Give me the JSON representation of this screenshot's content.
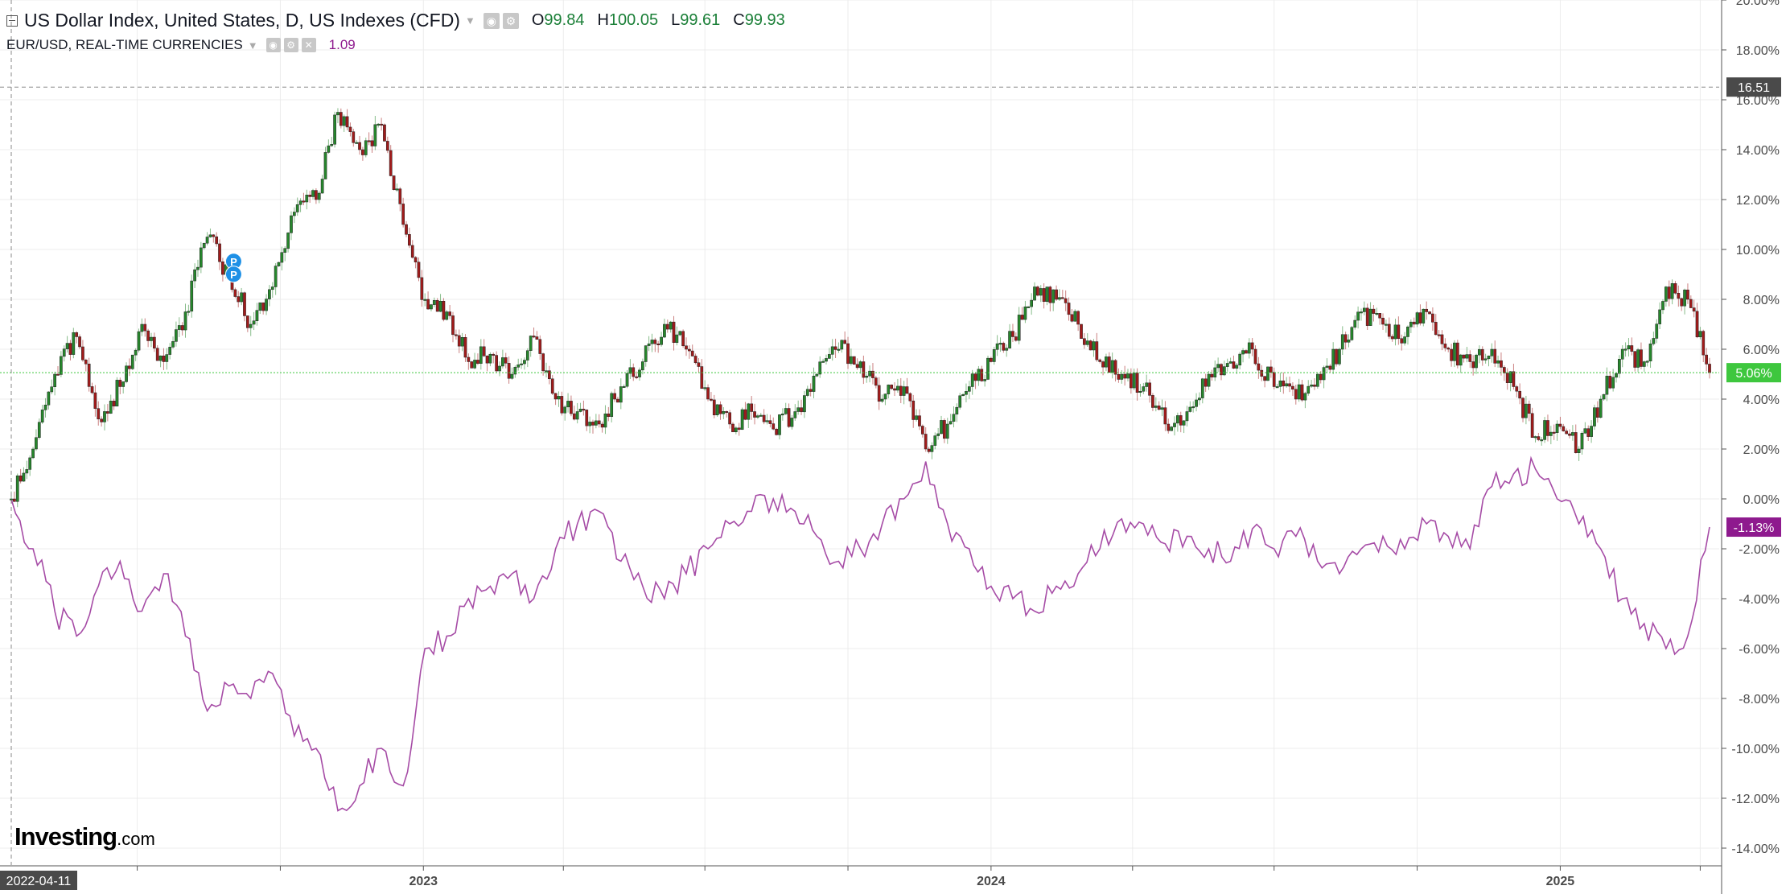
{
  "legend": {
    "main_title": "US Dollar Index, United States, D, US Indexes (CFD)",
    "ohlc": [
      {
        "label": "O",
        "value": "99.84"
      },
      {
        "label": "H",
        "value": "100.05"
      },
      {
        "label": "L",
        "value": "99.61"
      },
      {
        "label": "C",
        "value": "99.93"
      }
    ],
    "compare_title": "EUR/USD, REAL-TIME CURRENCIES",
    "compare_value": "1.09"
  },
  "badges": {
    "crosshair_price": "16.51",
    "crosshair_date": "2022-04-11",
    "dxy_last": "5.06%",
    "eurusd_last": "-1.13%"
  },
  "marker": {
    "label": "P"
  },
  "watermark": {
    "brand": "Investing",
    "suffix": ".com"
  },
  "colors": {
    "up": "#26872c",
    "down": "#a11b1b",
    "compare": "#a64ca6",
    "last_line": "#3ec73e",
    "compare_badge": "#8e1a8e"
  },
  "chart_data": {
    "type": "candlestick",
    "title": "US Dollar Index, United States, D, US Indexes (CFD)",
    "ylim": [
      -14.5,
      20
    ],
    "yticks": [
      20,
      18,
      16,
      14,
      12,
      10,
      8,
      6,
      4,
      2,
      0,
      -2,
      -4,
      -6,
      -8,
      -10,
      -12,
      -14
    ],
    "ytick_labels": [
      "20.00%",
      "18.00%",
      "16.00%",
      "14.00%",
      "12.00%",
      "10.00%",
      "8.00%",
      "6.00%",
      "4.00%",
      "2.00%",
      "0.00%",
      "-2.00%",
      "-4.00%",
      "-6.00%",
      "-8.00%",
      "-10.00%",
      "-12.00%",
      "-14.00%"
    ],
    "x_start": "2022-04-11",
    "x_end": "2025-04-07",
    "xtick_labels": [
      {
        "date": "2023-01-01",
        "label": "2023"
      },
      {
        "date": "2024-01-01",
        "label": "2024"
      },
      {
        "date": "2025-01-01",
        "label": "2025"
      }
    ],
    "crosshair": {
      "date": "2022-04-11",
      "value": 16.51
    },
    "series": [
      {
        "name": "US Dollar Index",
        "style": "candles",
        "points": [
          [
            "2022-04-11",
            0.0
          ],
          [
            "2022-04-25",
            2.0
          ],
          [
            "2022-05-09",
            5.0
          ],
          [
            "2022-05-23",
            6.5
          ],
          [
            "2022-06-06",
            3.2
          ],
          [
            "2022-06-20",
            4.5
          ],
          [
            "2022-07-04",
            7.0
          ],
          [
            "2022-07-18",
            5.5
          ],
          [
            "2022-08-01",
            7.5
          ],
          [
            "2022-08-15",
            10.5
          ],
          [
            "2022-08-29",
            9.0
          ],
          [
            "2022-09-12",
            7.0
          ],
          [
            "2022-09-26",
            8.5
          ],
          [
            "2022-10-10",
            11.5
          ],
          [
            "2022-10-24",
            12.0
          ],
          [
            "2022-11-07",
            15.5
          ],
          [
            "2022-11-21",
            14.0
          ],
          [
            "2022-12-05",
            15.0
          ],
          [
            "2022-12-19",
            11.0
          ],
          [
            "2023-01-02",
            8.0
          ],
          [
            "2023-01-16",
            7.5
          ],
          [
            "2023-01-30",
            5.5
          ],
          [
            "2023-02-13",
            5.8
          ],
          [
            "2023-02-27",
            5.0
          ],
          [
            "2023-03-13",
            6.5
          ],
          [
            "2023-03-27",
            4.0
          ],
          [
            "2023-04-10",
            3.5
          ],
          [
            "2023-04-24",
            3.0
          ],
          [
            "2023-05-08",
            4.5
          ],
          [
            "2023-05-22",
            5.5
          ],
          [
            "2023-06-05",
            7.0
          ],
          [
            "2023-06-19",
            6.0
          ],
          [
            "2023-07-03",
            4.0
          ],
          [
            "2023-07-17",
            3.0
          ],
          [
            "2023-07-31",
            3.5
          ],
          [
            "2023-08-14",
            2.8
          ],
          [
            "2023-08-28",
            3.5
          ],
          [
            "2023-09-11",
            5.0
          ],
          [
            "2023-09-25",
            6.0
          ],
          [
            "2023-10-09",
            5.5
          ],
          [
            "2023-10-23",
            4.0
          ],
          [
            "2023-11-06",
            4.5
          ],
          [
            "2023-11-20",
            2.0
          ],
          [
            "2023-12-04",
            3.0
          ],
          [
            "2023-12-18",
            4.5
          ],
          [
            "2024-01-01",
            5.5
          ],
          [
            "2024-01-15",
            6.5
          ],
          [
            "2024-01-29",
            8.5
          ],
          [
            "2024-02-12",
            8.0
          ],
          [
            "2024-02-26",
            7.0
          ],
          [
            "2024-03-11",
            5.5
          ],
          [
            "2024-03-25",
            5.0
          ],
          [
            "2024-04-08",
            4.5
          ],
          [
            "2024-04-22",
            3.0
          ],
          [
            "2024-05-06",
            3.5
          ],
          [
            "2024-05-20",
            5.0
          ],
          [
            "2024-06-03",
            5.5
          ],
          [
            "2024-06-17",
            6.0
          ],
          [
            "2024-07-01",
            4.5
          ],
          [
            "2024-07-15",
            4.0
          ],
          [
            "2024-07-29",
            5.0
          ],
          [
            "2024-08-12",
            6.0
          ],
          [
            "2024-08-26",
            7.5
          ],
          [
            "2024-09-09",
            7.0
          ],
          [
            "2024-09-23",
            6.5
          ],
          [
            "2024-10-07",
            7.5
          ],
          [
            "2024-10-21",
            6.0
          ],
          [
            "2024-11-04",
            5.5
          ],
          [
            "2024-11-18",
            6.0
          ],
          [
            "2024-12-02",
            4.5
          ],
          [
            "2024-12-16",
            2.5
          ],
          [
            "2024-12-30",
            3.0
          ],
          [
            "2025-01-13",
            2.0
          ],
          [
            "2025-01-27",
            4.0
          ],
          [
            "2025-02-10",
            6.0
          ],
          [
            "2025-02-24",
            5.5
          ],
          [
            "2025-03-10",
            8.5
          ],
          [
            "2025-03-24",
            8.0
          ],
          [
            "2025-04-07",
            5.06
          ]
        ]
      },
      {
        "name": "EUR/USD",
        "style": "line",
        "points": [
          [
            "2022-04-11",
            0.0
          ],
          [
            "2022-04-25",
            -2.0
          ],
          [
            "2022-05-09",
            -4.5
          ],
          [
            "2022-05-23",
            -5.5
          ],
          [
            "2022-06-06",
            -3.5
          ],
          [
            "2022-06-20",
            -2.5
          ],
          [
            "2022-07-04",
            -4.5
          ],
          [
            "2022-07-18",
            -3.0
          ],
          [
            "2022-08-01",
            -5.5
          ],
          [
            "2022-08-15",
            -8.5
          ],
          [
            "2022-08-29",
            -7.5
          ],
          [
            "2022-09-12",
            -8.0
          ],
          [
            "2022-09-26",
            -7.0
          ],
          [
            "2022-10-10",
            -9.5
          ],
          [
            "2022-10-24",
            -10.0
          ],
          [
            "2022-11-07",
            -12.5
          ],
          [
            "2022-11-21",
            -11.5
          ],
          [
            "2022-12-05",
            -10.0
          ],
          [
            "2022-12-19",
            -11.5
          ],
          [
            "2023-01-02",
            -6.0
          ],
          [
            "2023-01-16",
            -5.5
          ],
          [
            "2023-01-30",
            -4.0
          ],
          [
            "2023-02-13",
            -3.5
          ],
          [
            "2023-02-27",
            -3.0
          ],
          [
            "2023-03-13",
            -4.0
          ],
          [
            "2023-03-27",
            -2.0
          ],
          [
            "2023-04-10",
            -1.0
          ],
          [
            "2023-04-24",
            -0.5
          ],
          [
            "2023-05-08",
            -2.5
          ],
          [
            "2023-05-22",
            -3.5
          ],
          [
            "2023-06-05",
            -4.0
          ],
          [
            "2023-06-19",
            -3.0
          ],
          [
            "2023-07-03",
            -2.0
          ],
          [
            "2023-07-17",
            -1.0
          ],
          [
            "2023-07-31",
            -0.5
          ],
          [
            "2023-08-14",
            0.0
          ],
          [
            "2023-08-28",
            -0.5
          ],
          [
            "2023-09-11",
            -1.5
          ],
          [
            "2023-09-25",
            -2.5
          ],
          [
            "2023-10-09",
            -2.0
          ],
          [
            "2023-10-23",
            -1.0
          ],
          [
            "2023-11-06",
            0.0
          ],
          [
            "2023-11-20",
            1.5
          ],
          [
            "2023-12-04",
            -1.0
          ],
          [
            "2023-12-18",
            -2.0
          ],
          [
            "2024-01-01",
            -3.5
          ],
          [
            "2024-01-15",
            -4.0
          ],
          [
            "2024-01-29",
            -4.5
          ],
          [
            "2024-02-12",
            -3.5
          ],
          [
            "2024-02-26",
            -3.0
          ],
          [
            "2024-03-11",
            -2.0
          ],
          [
            "2024-03-25",
            -0.8
          ],
          [
            "2024-04-08",
            -1.0
          ],
          [
            "2024-04-22",
            -1.8
          ],
          [
            "2024-05-06",
            -1.5
          ],
          [
            "2024-05-20",
            -2.0
          ],
          [
            "2024-06-03",
            -2.5
          ],
          [
            "2024-06-17",
            -1.2
          ],
          [
            "2024-07-01",
            -2.0
          ],
          [
            "2024-07-15",
            -1.5
          ],
          [
            "2024-07-29",
            -2.5
          ],
          [
            "2024-08-12",
            -3.0
          ],
          [
            "2024-08-26",
            -2.0
          ],
          [
            "2024-09-09",
            -1.5
          ],
          [
            "2024-09-23",
            -2.0
          ],
          [
            "2024-10-07",
            -1.0
          ],
          [
            "2024-10-21",
            -1.5
          ],
          [
            "2024-11-04",
            -2.0
          ],
          [
            "2024-11-18",
            0.5
          ],
          [
            "2024-12-02",
            1.0
          ],
          [
            "2024-12-16",
            1.2
          ],
          [
            "2024-12-30",
            0.0
          ],
          [
            "2025-01-13",
            -1.0
          ],
          [
            "2025-01-27",
            -2.0
          ],
          [
            "2025-02-10",
            -4.0
          ],
          [
            "2025-02-24",
            -5.0
          ],
          [
            "2025-03-10",
            -6.0
          ],
          [
            "2025-03-24",
            -5.5
          ],
          [
            "2025-04-07",
            -1.13
          ]
        ]
      }
    ]
  }
}
